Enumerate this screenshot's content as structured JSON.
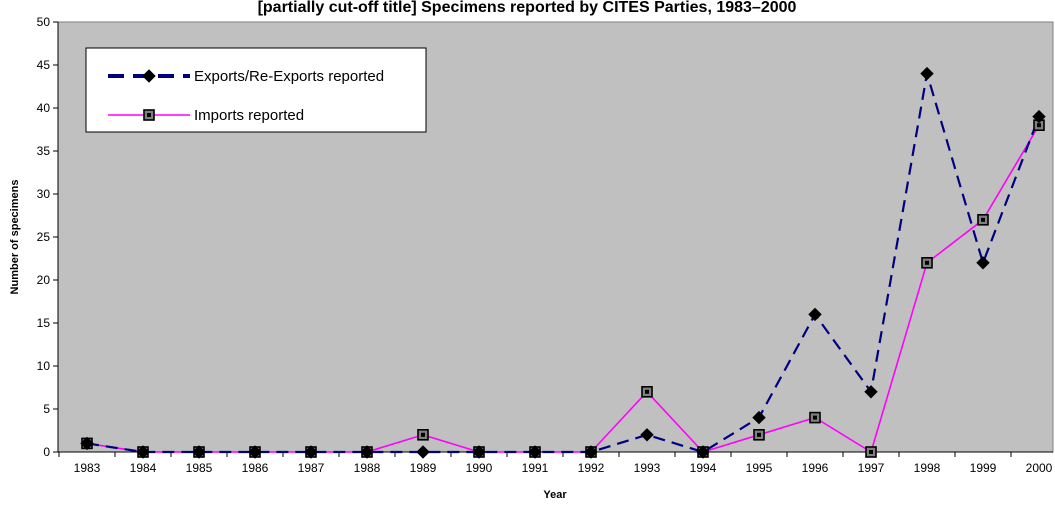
{
  "chart_data": {
    "type": "line",
    "title": "[partially cut-off title] Specimens reported by CITES Parties, 1983–2000",
    "xlabel": "Year",
    "ylabel": "Number of specimens",
    "ylim": [
      0,
      50
    ],
    "yticks": [
      0,
      5,
      10,
      15,
      20,
      25,
      30,
      35,
      40,
      45,
      50
    ],
    "grid": false,
    "legend_position": "top-left",
    "plot_background": "#c0c0c0",
    "categories": [
      "1983",
      "1984",
      "1985",
      "1986",
      "1987",
      "1988",
      "1989",
      "1990",
      "1991",
      "1992",
      "1993",
      "1994",
      "1995",
      "1996",
      "1997",
      "1998",
      "1999",
      "2000"
    ],
    "series": [
      {
        "name": "Exports/Re-Exports reported",
        "color": "#000080",
        "line_style": "dashed",
        "marker": "diamond",
        "values": [
          1,
          0,
          0,
          0,
          0,
          0,
          0,
          0,
          0,
          0,
          2,
          0,
          4,
          16,
          7,
          44,
          22,
          39
        ]
      },
      {
        "name": "Imports reported",
        "color": "#ff00ff",
        "line_style": "solid",
        "marker": "square",
        "values": [
          1,
          0,
          0,
          0,
          0,
          0,
          2,
          0,
          0,
          0,
          7,
          0,
          2,
          4,
          0,
          22,
          27,
          38
        ]
      }
    ]
  }
}
